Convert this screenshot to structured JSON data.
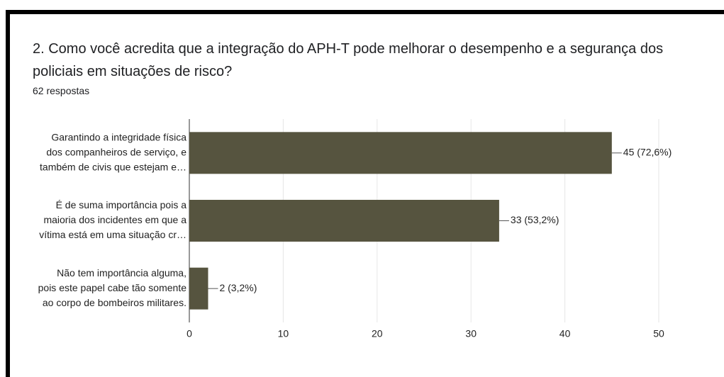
{
  "chart_data": {
    "type": "bar",
    "orientation": "horizontal",
    "title": "2. Como você acredita que a integração do APH-T pode melhorar o desempenho e a segurança dos policiais em situações de risco?",
    "subtitle": "62 respostas",
    "categories": [
      [
        "Garantindo a integridade física",
        "dos companheiros de serviço, e",
        "também de civis que estejam e…"
      ],
      [
        "É de suma importância pois a",
        "maioria dos incidentes em que a",
        "vítima está em uma situação cr…"
      ],
      [
        "Não tem importância alguma,",
        "pois este papel cabe tão somente",
        "ao corpo de bombeiros militares."
      ]
    ],
    "values": [
      45,
      33,
      2
    ],
    "value_labels": [
      "45 (72,6%)",
      "33 (53,2%)",
      "2 (3,2%)"
    ],
    "color": "#56543f",
    "xlim": [
      0,
      50
    ],
    "xticks": [
      0,
      10,
      20,
      30,
      40,
      50
    ],
    "grid": true
  }
}
